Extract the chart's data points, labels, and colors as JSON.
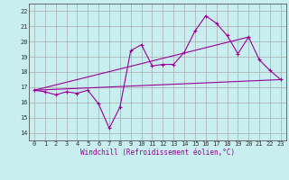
{
  "xlabel": "Windchill (Refroidissement éolien,°C)",
  "background_color": "#c8eef0",
  "grid_color": "#aaaaaa",
  "line_color": "#990099",
  "xlim": [
    -0.5,
    23.5
  ],
  "ylim": [
    13.5,
    22.5
  ],
  "yticks": [
    14,
    15,
    16,
    17,
    18,
    19,
    20,
    21,
    22
  ],
  "xticks": [
    0,
    1,
    2,
    3,
    4,
    5,
    6,
    7,
    8,
    9,
    10,
    11,
    12,
    13,
    14,
    15,
    16,
    17,
    18,
    19,
    20,
    21,
    22,
    23
  ],
  "line1_x": [
    0,
    1,
    2,
    3,
    4,
    5,
    6,
    7,
    8,
    9,
    10,
    11,
    12,
    13,
    14,
    15,
    16,
    17,
    18,
    19,
    20,
    21,
    22,
    23
  ],
  "line1_y": [
    16.8,
    16.7,
    16.5,
    16.7,
    16.6,
    16.8,
    15.9,
    14.3,
    15.7,
    19.4,
    19.8,
    18.4,
    18.5,
    18.5,
    19.3,
    20.7,
    21.7,
    21.2,
    20.4,
    19.2,
    20.3,
    18.8,
    18.1,
    17.5
  ],
  "line2_x": [
    0,
    20
  ],
  "line2_y": [
    16.8,
    20.3
  ],
  "line3_x": [
    0,
    23
  ],
  "line3_y": [
    16.8,
    17.5
  ],
  "xlabel_fontsize": 5.5,
  "tick_fontsize": 5.0
}
